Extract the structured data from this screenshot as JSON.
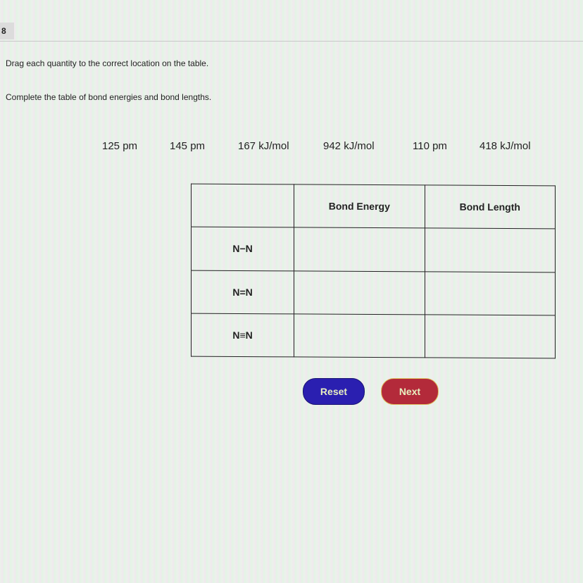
{
  "question_number": "8",
  "instructions": {
    "line1": "Drag each quantity to the correct location on the table.",
    "line2": "Complete the table of bond energies and bond lengths."
  },
  "quantities": [
    "125 pm",
    "145 pm",
    "167 kJ/mol",
    "942 kJ/mol",
    "110 pm",
    "418 kJ/mol"
  ],
  "table": {
    "headers": [
      "",
      "Bond Energy",
      "Bond Length"
    ],
    "rows": [
      {
        "bond": "N−N",
        "energy": "",
        "length": ""
      },
      {
        "bond": "N=N",
        "energy": "",
        "length": ""
      },
      {
        "bond": "N≡N",
        "energy": "",
        "length": ""
      }
    ]
  },
  "buttons": {
    "reset": "Reset",
    "next": "Next"
  },
  "colors": {
    "reset": "#2a1fb0",
    "next": "#b32a3a"
  }
}
